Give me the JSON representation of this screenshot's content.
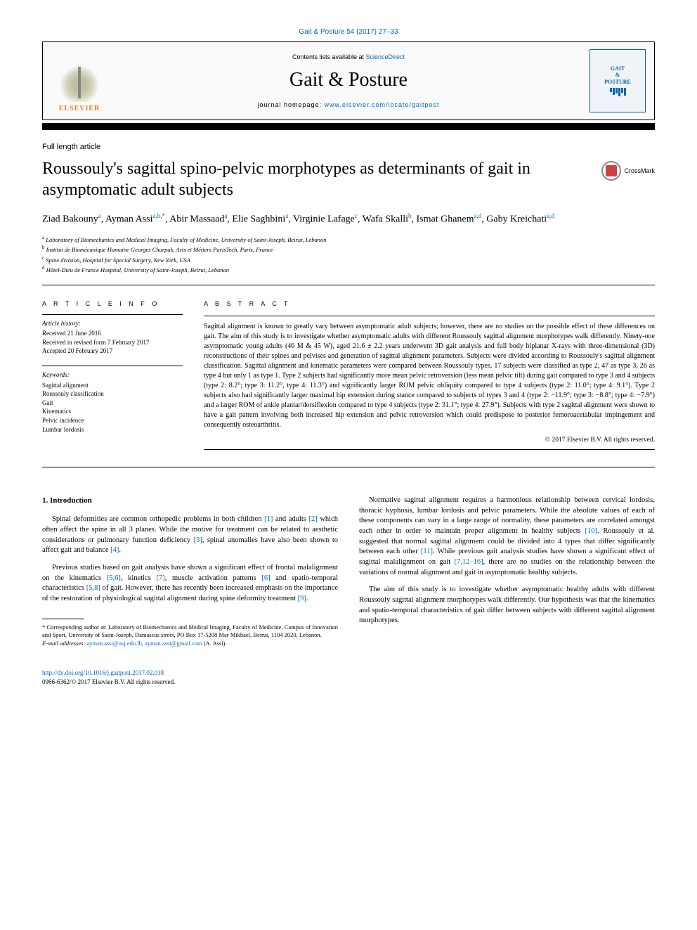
{
  "top_citation": "Gait & Posture 54 (2017) 27–33",
  "header": {
    "contents_prefix": "Contents lists available at ",
    "sciencedirect": "ScienceDirect",
    "journal_title": "Gait & Posture",
    "homepage_prefix": "journal homepage: ",
    "homepage_url": "www.elsevier.com/locate/gaitpost",
    "elsevier": "ELSEVIER",
    "cover_line1": "GAIT",
    "cover_line2": "POSTURE"
  },
  "article_type": "Full length article",
  "title": "Roussouly's sagittal spino-pelvic morphotypes as determinants of gait in asymptomatic adult subjects",
  "crossmark": "CrossMark",
  "authors_html": "Ziad Bakouny<sup>a</sup>, Ayman Assi<sup>a,b,*</sup>, Abir Massaad<sup>a</sup>, Elie Saghbini<sup>a</sup>, Virginie Lafage<sup>c</sup>, Wafa Skalli<sup>b</sup>, Ismat Ghanem<sup>a,d</sup>, Gaby Kreichati<sup>a,d</sup>",
  "affiliations": {
    "a": "Laboratory of Biomechanics and Medical Imaging, Faculty of Medicine, University of Saint-Joseph, Beirut, Lebanon",
    "b": "Institut de Biomécanique Humaine Georges Charpak, Arts et Métiers ParisTech, Paris, France",
    "c": "Spine division, Hospital for Special Surgery, New York, USA",
    "d": "Hôtel-Dieu de France Hospital, University of Saint-Joseph, Beirut, Lebanon"
  },
  "article_info": {
    "heading": "A R T I C L E  I N F O",
    "history_label": "Article history:",
    "received": "Received 21 June 2016",
    "revised": "Received in revised form 7 February 2017",
    "accepted": "Accepted 20 February 2017",
    "keywords_label": "Keywords:",
    "keywords": [
      "Sagittal alignment",
      "Roussouly classification",
      "Gait",
      "Kinematics",
      "Pelvic incidence",
      "Lumbar lordosis"
    ]
  },
  "abstract": {
    "heading": "A B S T R A C T",
    "text": "Sagittal alignment is known to greatly vary between asymptomatic adult subjects; however, there are no studies on the possible effect of these differences on gait. The aim of this study is to investigate whether asymptomatic adults with different Roussouly sagittal alignment morphotypes walk differently. Ninety-one asymptomatic young adults (46 M & 45 W), aged 21.6 ± 2.2 years underwent 3D gait analysis and full body biplanar X-rays with three-dimensional (3D) reconstructions of their spines and pelvises and generation of sagittal alignment parameters. Subjects were divided according to Roussouly's sagittal alignment classification. Sagittal alignment and kinematic parameters were compared between Roussouly types. 17 subjects were classified as type 2, 47 as type 3, 26 as type 4 but only 1 as type 1. Type 2 subjects had significantly more mean pelvic retroversion (less mean pelvic tilt) during gait compared to type 3 and 4 subjects (type 2: 8.2°; type 3: 11.2°, type 4: 11.3°) and significantly larger ROM pelvic obliquity compared to type 4 subjects (type 2: 11.0°; type 4: 9.1°). Type 2 subjects also had significantly larger maximal hip extension during stance compared to subjects of types 3 and 4 (type 2: −11.9°; type 3: −8.8°; type 4: −7.9°) and a larger ROM of ankle plantar/dorsiflexion compared to type 4 subjects (type 2: 31.1°; type 4: 27.9°). Subjects with type 2 sagittal alignment were shown to have a gait pattern involving both increased hip extension and pelvic retroversion which could predispose to posterior femoroacetabular impingement and consequently osteoarthritis.",
    "copyright": "© 2017 Elsevier B.V. All rights reserved."
  },
  "intro": {
    "heading": "1. Introduction",
    "p1_pre": "Spinal deformities are common orthopedic problems in both children ",
    "p1_r1": "[1]",
    "p1_mid1": " and adults ",
    "p1_r2": "[2]",
    "p1_mid2": " which often affect the spine in all 3 planes. While the motive for treatment can be related to aesthetic considerations or pulmonary function deficiency ",
    "p1_r3": "[3]",
    "p1_mid3": ", spinal anomalies have also been shown to affect gait and balance ",
    "p1_r4": "[4]",
    "p1_end": ".",
    "p2_pre": "Previous studies based on gait analysis have shown a significant effect of frontal malalignment on the kinematics ",
    "p2_r1": "[5,6]",
    "p2_m1": ", kinetics ",
    "p2_r2": "[7]",
    "p2_m2": ", muscle activation patterns ",
    "p2_r3": "[6]",
    "p2_m3": " and spatio-temporal characteristics ",
    "p2_r4": "[5,8]",
    "p2_m4": " of gait. However, there has recently been increased emphasis on the importance of the restoration of physiological sagittal alignment during spine deformity treatment ",
    "p2_r5": "[9]",
    "p2_end": ".",
    "p3_pre": "Normative sagittal alignment requires a harmonious relationship between cervical lordosis, thoracic kyphosis, lumbar lordosis and pelvic parameters. While the absolute values of each of these components can vary in a large range of normality, these parameters are correlated amongst each other in order to maintain proper alignment in healthy subjects ",
    "p3_r1": "[10]",
    "p3_m1": ". Roussouly et al. suggested that normal sagittal alignment could be divided into 4 types that differ significantly between each other ",
    "p3_r2": "[11]",
    "p3_m2": ". While previous gait analysis studies have shown a significant effect of sagittal malalignment on gait ",
    "p3_r3": "[7,12–16]",
    "p3_m3": ", there are no studies on the relationship between the variations of normal alignment and gait in asymptomatic healthy subjects.",
    "p4": "The aim of this study is to investigate whether asymptomatic healthy adults with different Roussouly sagittal alignment morphotypes walk differently. Our hypothesis was that the kinematics and spatio-temporal characteristics of gait differ between subjects with different sagittal alignment morphotypes."
  },
  "footnote": {
    "corr": "* Corresponding author at: Laboratory of Biomechanics and Medical Imaging, Faculty of Medicine, Campus of Innovation and Sport, University of Saint-Joseph, Damascus street, PO Box 17-5208 Mar Mikhael, Beirut, 1104 2020, Lebanon.",
    "email_label": "E-mail addresses: ",
    "email1": "ayman.assi@usj.edu.lb",
    "email_sep": ", ",
    "email2": "ayman.assi@gmail.com",
    "email_suffix": " (A. Assi)."
  },
  "doi": {
    "url": "http://dx.doi.org/10.1016/j.gaitpost.2017.02.018",
    "issn": "0966-6362/© 2017 Elsevier B.V. All rights reserved."
  },
  "colors": {
    "link": "#0066cc",
    "elsevier": "#e67e22",
    "cover": "#0066aa"
  }
}
